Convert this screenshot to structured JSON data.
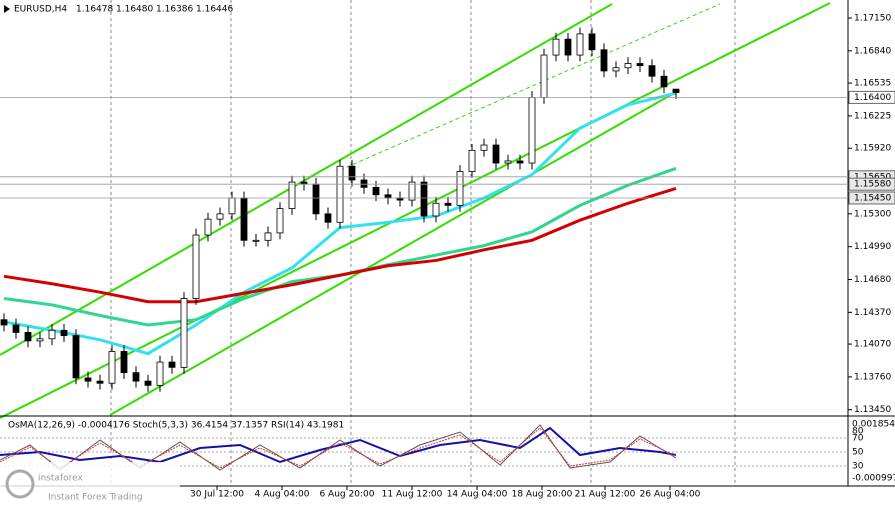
{
  "chart_data": {
    "type": "candlestick",
    "title": "EURUSD,H4",
    "header_values": [
      "1.16478",
      "1.16480",
      "1.16386",
      "1.16446"
    ],
    "open": [
      1.143,
      1.1425,
      1.1418,
      1.141,
      1.1412,
      1.142,
      1.1415,
      1.1375,
      1.1372,
      1.137,
      1.14,
      1.138,
      1.1372,
      1.1368,
      1.139,
      1.1385,
      1.145,
      1.151,
      1.1525,
      1.153,
      1.1545,
      1.1505,
      1.1505,
      1.1512,
      1.1535,
      1.156,
      1.1558,
      1.153,
      1.1522,
      1.1575,
      1.1562,
      1.1555,
      1.1548,
      1.1545,
      1.1543,
      1.156,
      1.1528,
      1.154,
      1.1538,
      1.157,
      1.159,
      1.1595,
      1.1578,
      1.158,
      1.1578,
      1.164,
      1.168,
      1.1695,
      1.168,
      1.17,
      1.1685,
      1.1665,
      1.1668,
      1.1672,
      1.167,
      1.166,
      1.16478
    ],
    "high": [
      1.1436,
      1.1431,
      1.1424,
      1.1418,
      1.1426,
      1.1426,
      1.1421,
      1.1381,
      1.1378,
      1.1406,
      1.1406,
      1.1386,
      1.1378,
      1.1396,
      1.1396,
      1.1456,
      1.1516,
      1.1531,
      1.1536,
      1.1551,
      1.1551,
      1.1511,
      1.1518,
      1.1541,
      1.1566,
      1.1566,
      1.1564,
      1.1536,
      1.1581,
      1.1581,
      1.1568,
      1.1561,
      1.1554,
      1.1551,
      1.1566,
      1.1566,
      1.1546,
      1.1546,
      1.1576,
      1.1596,
      1.1601,
      1.1601,
      1.1586,
      1.1586,
      1.1646,
      1.1686,
      1.1701,
      1.1701,
      1.1706,
      1.1706,
      1.1691,
      1.1674,
      1.1678,
      1.1678,
      1.1676,
      1.1666,
      1.1648
    ],
    "low": [
      1.1419,
      1.1412,
      1.1404,
      1.1404,
      1.1406,
      1.1409,
      1.1369,
      1.1366,
      1.1364,
      1.1364,
      1.1374,
      1.1366,
      1.1362,
      1.1362,
      1.1379,
      1.1379,
      1.1444,
      1.1504,
      1.1519,
      1.1524,
      1.1499,
      1.1499,
      1.1499,
      1.1506,
      1.1529,
      1.1552,
      1.1524,
      1.1516,
      1.1516,
      1.1556,
      1.1549,
      1.1542,
      1.1539,
      1.1537,
      1.1537,
      1.1522,
      1.1522,
      1.1532,
      1.1532,
      1.1564,
      1.1584,
      1.1572,
      1.1572,
      1.1572,
      1.1572,
      1.1634,
      1.1674,
      1.1674,
      1.1674,
      1.1679,
      1.1659,
      1.1659,
      1.1662,
      1.1664,
      1.1654,
      1.1644,
      1.16386
    ],
    "close": [
      1.1425,
      1.1418,
      1.141,
      1.1412,
      1.142,
      1.1415,
      1.1375,
      1.1372,
      1.137,
      1.14,
      1.138,
      1.1372,
      1.1368,
      1.139,
      1.1385,
      1.145,
      1.151,
      1.1525,
      1.153,
      1.1545,
      1.1505,
      1.1505,
      1.1512,
      1.1535,
      1.156,
      1.1558,
      1.153,
      1.1522,
      1.1575,
      1.1562,
      1.1555,
      1.1548,
      1.1545,
      1.1543,
      1.156,
      1.1528,
      1.154,
      1.1538,
      1.157,
      1.159,
      1.1595,
      1.1578,
      1.158,
      1.1578,
      1.164,
      1.168,
      1.1695,
      1.168,
      1.17,
      1.1685,
      1.1665,
      1.1668,
      1.1672,
      1.167,
      1.166,
      1.165,
      1.16446
    ],
    "averages": [
      {
        "color": "#33e0f0",
        "values": [
          1.1428,
          1.142,
          1.1411,
          1.1398,
          1.1425,
          1.1456,
          1.1479,
          1.1517,
          1.1522,
          1.1528,
          1.1545,
          1.1567,
          1.1611,
          1.1633,
          1.1644
        ]
      },
      {
        "color": "#2fd68c",
        "values": [
          1.145,
          1.1444,
          1.1434,
          1.1425,
          1.143,
          1.145,
          1.1466,
          1.1472,
          1.1482,
          1.1491,
          1.15,
          1.1513,
          1.1538,
          1.1557,
          1.1573
        ]
      },
      {
        "color": "#d40000",
        "values": [
          1.1471,
          1.1464,
          1.1456,
          1.1447,
          1.1447,
          1.1455,
          1.1463,
          1.1472,
          1.1481,
          1.1486,
          1.1496,
          1.1505,
          1.1524,
          1.154,
          1.1554
        ]
      }
    ],
    "ylim": [
      1.134,
      1.1732
    ],
    "yticks": [
      {
        "value": 1.1715,
        "label": "1.17150"
      },
      {
        "value": 1.1684,
        "label": "1.16840"
      },
      {
        "value": 1.16535,
        "label": "1.16535"
      },
      {
        "value": 1.16225,
        "label": "1.16225"
      },
      {
        "value": 1.1592,
        "label": "1.15920"
      },
      {
        "value": 1.153,
        "label": "1.15300"
      },
      {
        "value": 1.1499,
        "label": "1.14990"
      },
      {
        "value": 1.1468,
        "label": "1.14680"
      },
      {
        "value": 1.1437,
        "label": "1.14370"
      },
      {
        "value": 1.1407,
        "label": "1.14070"
      },
      {
        "value": 1.1376,
        "label": "1.13760"
      },
      {
        "value": 1.1345,
        "label": "1.13450"
      }
    ],
    "levels": [
      {
        "value": 1.164,
        "label": "1.16400"
      },
      {
        "value": 1.1565,
        "label": "1.15650"
      },
      {
        "value": 1.1558,
        "label": "1.15580"
      },
      {
        "value": 1.1545,
        "label": "1.15450"
      }
    ],
    "xticks": [
      {
        "value": 17.75,
        "label": "30 Jul 12:00"
      },
      {
        "value": 23.17,
        "label": "4 Aug 04:00"
      },
      {
        "value": 28.58,
        "label": "6 Aug 20:00"
      },
      {
        "value": 34,
        "label": "11 Aug 12:00"
      },
      {
        "value": 39.42,
        "label": "14 Aug 04:00"
      },
      {
        "value": 44.83,
        "label": "18 Aug 20:00"
      },
      {
        "value": 50.08,
        "label": "21 Aug 12:00"
      },
      {
        "value": 55.5,
        "label": "26 Aug 04:00"
      }
    ],
    "oscillator_header": "OsMA(12,26,9) -0.0004176  Stoch(5,3,3) 36.4154 37.1357  RSI(14) 43.1981",
    "oscillator_ticks": [
      "0.001854",
      "80",
      "70",
      "50",
      "30",
      "-0.000997"
    ],
    "logo": {
      "brand": "instaforex",
      "tagline": "Instant Forex Trading"
    }
  }
}
